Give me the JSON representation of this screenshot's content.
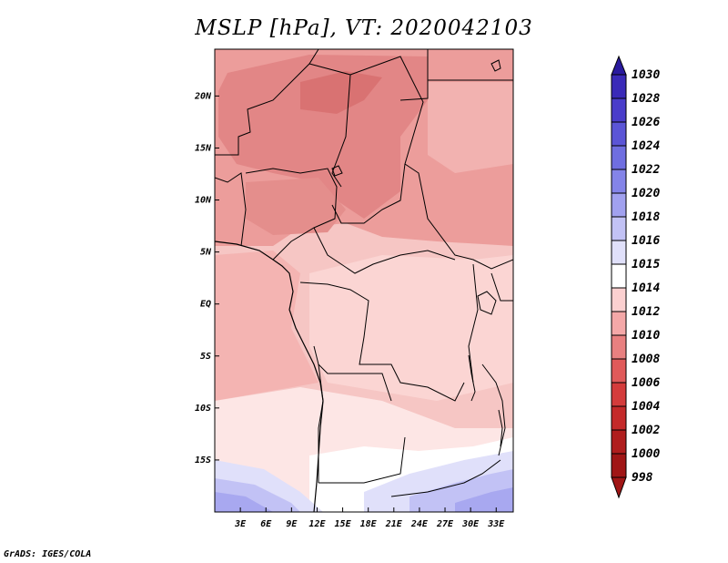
{
  "title": "MSLP [hPa], VT: 2020042103",
  "footer": "GrADS: IGES/COLA",
  "map": {
    "lon_ticks": [
      "3E",
      "6E",
      "9E",
      "12E",
      "15E",
      "18E",
      "21E",
      "24E",
      "27E",
      "30E",
      "33E"
    ],
    "lat_ticks": [
      "20N",
      "15N",
      "10N",
      "5N",
      "EQ",
      "5S",
      "10S",
      "15S"
    ]
  },
  "colorbar": {
    "labels": [
      "1030",
      "1028",
      "1026",
      "1024",
      "1022",
      "1020",
      "1018",
      "1016",
      "1015",
      "1014",
      "1012",
      "1010",
      "1008",
      "1006",
      "1004",
      "1002",
      "1000",
      "998"
    ],
    "colors": [
      "#2a1a9e",
      "#3a2ab8",
      "#4a3dca",
      "#5b55d6",
      "#6f6ee0",
      "#8484e8",
      "#a1a1ef",
      "#c2c2f5",
      "#e0e0fa",
      "#ffffff",
      "#fbd0d0",
      "#f4a8a8",
      "#e88080",
      "#e05a5a",
      "#d43c3c",
      "#c42a2a",
      "#b01e1e",
      "#a01616"
    ]
  }
}
